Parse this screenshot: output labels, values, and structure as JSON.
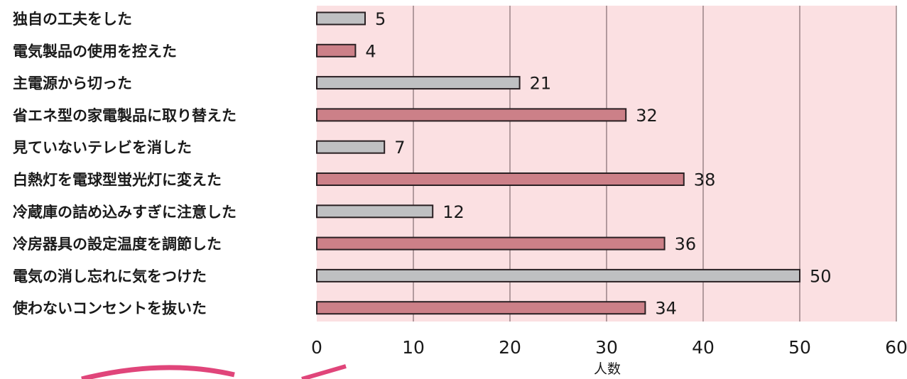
{
  "chart_data": {
    "type": "bar",
    "orientation": "horizontal",
    "categories": [
      "独自の工夫をした",
      "電気製品の使用を控えた",
      "主電源から切った",
      "省エネ型の家電製品に取り替えた",
      "見ていないテレビを消した",
      "白熱灯を電球型蛍光灯に変えた",
      "冷蔵庫の詰め込みすぎに注意した",
      "冷房器具の設定温度を調節した",
      "電気の消し忘れに気をつけた",
      "使わないコンセントを抜いた"
    ],
    "values": [
      5,
      4,
      21,
      32,
      7,
      38,
      12,
      36,
      50,
      34
    ],
    "bar_colors": [
      "#bfc0c2",
      "#cc8088",
      "#bfc0c2",
      "#cc8088",
      "#bfc0c2",
      "#cc8088",
      "#bfc0c2",
      "#cc8088",
      "#bfc0c2",
      "#cc8088"
    ],
    "xlabel": "人数",
    "ylabel": "",
    "title": "",
    "xlim": [
      0,
      60
    ],
    "xticks": [
      "0",
      "10",
      "20",
      "30",
      "40",
      "50",
      "60"
    ],
    "grid": "vertical",
    "plot_background": "#fbe0e2",
    "grid_color": "#6a5558",
    "bar_border_color": "#2a2023"
  }
}
